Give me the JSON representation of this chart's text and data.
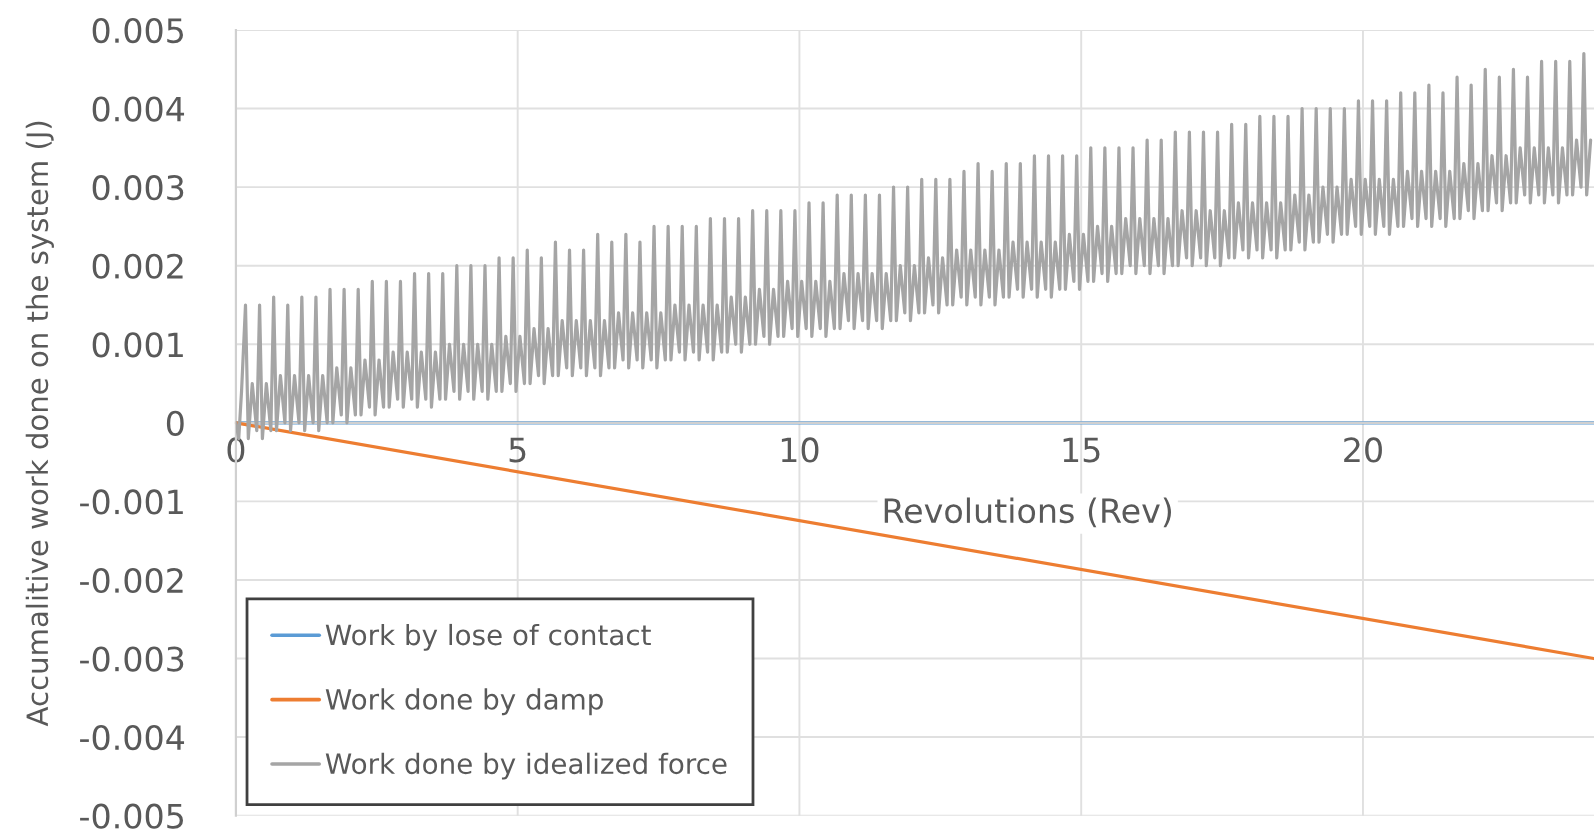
{
  "chart_data": {
    "type": "line",
    "xlabel": "Revolutions (Rev)",
    "ylabel": "Accumalitive work done on the system (J)",
    "xlim": [
      0,
      24.1
    ],
    "ylim": [
      -0.005,
      0.005
    ],
    "xticks": [
      0,
      5,
      10,
      15,
      20
    ],
    "yticks": [
      -0.005,
      -0.004,
      -0.003,
      -0.002,
      -0.001,
      0,
      0.001,
      0.002,
      0.003,
      0.004,
      0.005
    ],
    "grid": true,
    "legend": "bottom left",
    "series": [
      {
        "name": "Work by lose of contact",
        "color": "#5b9bd5",
        "x": [
          0,
          24.1
        ],
        "values": [
          0,
          0
        ]
      },
      {
        "name": "Work done by damp",
        "color": "#ed7d31",
        "x": [
          0,
          24.1
        ],
        "values": [
          0,
          -0.003
        ]
      },
      {
        "name": "Work done by idealized force",
        "color": "#a5a5a5",
        "x": [
          0,
          0.05,
          0.1,
          0.17,
          0.22,
          0.29,
          0.37,
          0.42,
          0.47,
          0.54,
          0.62,
          0.67,
          0.72,
          0.79,
          0.87,
          0.92,
          0.97,
          1.04,
          1.12,
          1.17,
          1.22,
          1.29,
          1.37,
          1.42,
          1.47,
          1.54,
          1.62,
          1.67,
          1.72,
          1.79,
          1.87,
          1.92,
          1.97,
          2.04,
          2.12,
          2.17,
          2.22,
          2.29,
          2.37,
          2.42,
          2.47,
          2.54,
          2.62,
          2.67,
          2.72,
          2.79,
          2.87,
          2.92,
          2.97,
          3.04,
          3.12,
          3.17,
          3.22,
          3.29,
          3.37,
          3.42,
          3.47,
          3.54,
          3.62,
          3.67,
          3.72,
          3.79,
          3.87,
          3.92,
          3.97,
          4.04,
          4.12,
          4.17,
          4.22,
          4.29,
          4.37,
          4.42,
          4.47,
          4.54,
          4.62,
          4.67,
          4.72,
          4.79,
          4.87,
          4.92,
          4.97,
          5.04,
          5.12,
          5.17,
          5.22,
          5.29,
          5.37,
          5.42,
          5.47,
          5.54,
          5.62,
          5.67,
          5.72,
          5.79,
          5.87,
          5.92,
          5.97,
          6.04,
          6.12,
          6.17,
          6.22,
          6.29,
          6.37,
          6.42,
          6.47,
          6.54,
          6.62,
          6.67,
          6.72,
          6.79,
          6.87,
          6.92,
          6.97,
          7.04,
          7.12,
          7.17,
          7.22,
          7.29,
          7.37,
          7.42,
          7.47,
          7.54,
          7.62,
          7.67,
          7.72,
          7.79,
          7.87,
          7.92,
          7.97,
          8.04,
          8.12,
          8.17,
          8.22,
          8.29,
          8.37,
          8.42,
          8.47,
          8.54,
          8.62,
          8.67,
          8.72,
          8.79,
          8.87,
          8.92,
          8.97,
          9.04,
          9.12,
          9.17,
          9.22,
          9.29,
          9.37,
          9.42,
          9.47,
          9.54,
          9.62,
          9.67,
          9.72,
          9.79,
          9.87,
          9.92,
          9.97,
          10.04,
          10.12,
          10.17,
          10.22,
          10.29,
          10.37,
          10.42,
          10.47,
          10.54,
          10.62,
          10.67,
          10.72,
          10.79,
          10.87,
          10.92,
          10.97,
          11.04,
          11.12,
          11.17,
          11.22,
          11.29,
          11.37,
          11.42,
          11.47,
          11.54,
          11.62,
          11.67,
          11.72,
          11.79,
          11.87,
          11.92,
          11.97,
          12.04,
          12.12,
          12.17,
          12.22,
          12.29,
          12.37,
          12.42,
          12.47,
          12.54,
          12.62,
          12.67,
          12.72,
          12.79,
          12.87,
          12.92,
          12.97,
          13.04,
          13.12,
          13.17,
          13.22,
          13.29,
          13.37,
          13.42,
          13.47,
          13.54,
          13.62,
          13.67,
          13.72,
          13.79,
          13.87,
          13.92,
          13.97,
          14.04,
          14.12,
          14.17,
          14.22,
          14.29,
          14.37,
          14.42,
          14.47,
          14.54,
          14.62,
          14.67,
          14.72,
          14.79,
          14.87,
          14.92,
          14.97,
          15.04,
          15.12,
          15.17,
          15.22,
          15.29,
          15.37,
          15.42,
          15.47,
          15.54,
          15.62,
          15.67,
          15.72,
          15.79,
          15.87,
          15.92,
          15.97,
          16.04,
          16.12,
          16.17,
          16.22,
          16.29,
          16.37,
          16.42,
          16.47,
          16.54,
          16.62,
          16.67,
          16.72,
          16.79,
          16.87,
          16.92,
          16.97,
          17.04,
          17.12,
          17.17,
          17.22,
          17.29,
          17.37,
          17.42,
          17.47,
          17.54,
          17.62,
          17.67,
          17.72,
          17.79,
          17.87,
          17.92,
          17.97,
          18.04,
          18.12,
          18.17,
          18.22,
          18.29,
          18.37,
          18.42,
          18.47,
          18.54,
          18.62,
          18.67,
          18.72,
          18.79,
          18.87,
          18.92,
          18.97,
          19.04,
          19.12,
          19.17,
          19.22,
          19.29,
          19.37,
          19.42,
          19.47,
          19.54,
          19.62,
          19.67,
          19.72,
          19.79,
          19.87,
          19.92,
          19.97,
          20.04,
          20.12,
          20.17,
          20.22,
          20.29,
          20.37,
          20.42,
          20.47,
          20.54,
          20.62,
          20.67,
          20.72,
          20.79,
          20.87,
          20.92,
          20.97,
          21.04,
          21.12,
          21.17,
          21.22,
          21.29,
          21.37,
          21.42,
          21.47,
          21.54,
          21.62,
          21.67,
          21.72,
          21.79,
          21.87,
          21.92,
          21.97,
          22.04,
          22.12,
          22.17,
          22.22,
          22.29,
          22.37,
          22.42,
          22.47,
          22.54,
          22.62,
          22.67,
          22.72,
          22.79,
          22.87,
          22.92,
          22.97,
          23.04,
          23.12,
          23.17,
          23.22,
          23.29,
          23.37,
          23.42,
          23.47,
          23.54,
          23.62,
          23.67,
          23.72,
          23.79,
          23.87,
          23.92,
          23.97,
          24.04
        ],
        "values": [
          0,
          -0.0002,
          0.0004,
          0.0015,
          -0.0002,
          0.0005,
          -0.0001,
          0.0015,
          -0.0002,
          0.0005,
          -0.0001,
          0.0016,
          -0.0001,
          0.0006,
          0,
          0.0015,
          -0.0001,
          0.0006,
          0,
          0.0016,
          -0.0001,
          0.0006,
          0,
          0.0016,
          -0.0001,
          0.0006,
          0,
          0.0017,
          0,
          0.0007,
          0.0001,
          0.0017,
          0,
          0.0007,
          0.0001,
          0.0017,
          0.0001,
          0.0008,
          0.0002,
          0.0018,
          0.0001,
          0.0008,
          0.0002,
          0.0018,
          0.0002,
          0.0009,
          0.0003,
          0.0018,
          0.0002,
          0.0009,
          0.0003,
          0.0019,
          0.0002,
          0.0009,
          0.0003,
          0.0019,
          0.0002,
          0.0009,
          0.0003,
          0.0019,
          0.0003,
          0.001,
          0.0004,
          0.002,
          0.0003,
          0.001,
          0.0004,
          0.002,
          0.0003,
          0.001,
          0.0004,
          0.002,
          0.0003,
          0.001,
          0.0004,
          0.0021,
          0.0004,
          0.0011,
          0.0005,
          0.0021,
          0.0004,
          0.0011,
          0.0005,
          0.0022,
          0.0005,
          0.0012,
          0.0006,
          0.0021,
          0.0005,
          0.0012,
          0.0006,
          0.0023,
          0.0006,
          0.0013,
          0.0007,
          0.0022,
          0.0006,
          0.0013,
          0.0007,
          0.0022,
          0.0006,
          0.0013,
          0.0007,
          0.0024,
          0.0006,
          0.0013,
          0.0007,
          0.0023,
          0.0007,
          0.0014,
          0.0008,
          0.0024,
          0.0007,
          0.0014,
          0.0008,
          0.0023,
          0.0007,
          0.0014,
          0.0008,
          0.0025,
          0.0007,
          0.0014,
          0.0008,
          0.0025,
          0.0008,
          0.0015,
          0.0009,
          0.0025,
          0.0008,
          0.0015,
          0.0009,
          0.0025,
          0.0008,
          0.0015,
          0.0009,
          0.0026,
          0.0008,
          0.0015,
          0.0009,
          0.0026,
          0.0009,
          0.0016,
          0.001,
          0.0026,
          0.0009,
          0.0016,
          0.001,
          0.0027,
          0.001,
          0.0017,
          0.0011,
          0.0027,
          0.001,
          0.0017,
          0.0011,
          0.0027,
          0.0011,
          0.0018,
          0.0012,
          0.0027,
          0.0011,
          0.0018,
          0.0012,
          0.0028,
          0.0011,
          0.0018,
          0.0012,
          0.0028,
          0.0011,
          0.0018,
          0.0012,
          0.0029,
          0.0012,
          0.0019,
          0.0013,
          0.0029,
          0.0012,
          0.0019,
          0.0013,
          0.0029,
          0.0012,
          0.0019,
          0.0013,
          0.0029,
          0.0012,
          0.0019,
          0.0013,
          0.003,
          0.0013,
          0.002,
          0.0014,
          0.003,
          0.0013,
          0.002,
          0.0014,
          0.0031,
          0.0014,
          0.0021,
          0.0015,
          0.0031,
          0.0014,
          0.0021,
          0.0015,
          0.0031,
          0.0015,
          0.0022,
          0.0016,
          0.0032,
          0.0015,
          0.0022,
          0.0016,
          0.0033,
          0.0015,
          0.0022,
          0.0016,
          0.0032,
          0.0015,
          0.0022,
          0.0016,
          0.0033,
          0.0016,
          0.0023,
          0.0017,
          0.0033,
          0.0016,
          0.0023,
          0.0017,
          0.0034,
          0.0016,
          0.0023,
          0.0017,
          0.0034,
          0.0016,
          0.0023,
          0.0017,
          0.0034,
          0.0017,
          0.0024,
          0.0018,
          0.0034,
          0.0017,
          0.0024,
          0.0018,
          0.0035,
          0.0018,
          0.0025,
          0.0019,
          0.0035,
          0.0018,
          0.0025,
          0.0019,
          0.0035,
          0.0019,
          0.0026,
          0.002,
          0.0035,
          0.0019,
          0.0026,
          0.002,
          0.0036,
          0.0019,
          0.0026,
          0.002,
          0.0036,
          0.0019,
          0.0026,
          0.002,
          0.0037,
          0.002,
          0.0027,
          0.0021,
          0.0037,
          0.002,
          0.0027,
          0.0021,
          0.0037,
          0.002,
          0.0027,
          0.0021,
          0.0037,
          0.002,
          0.0027,
          0.0021,
          0.0038,
          0.0021,
          0.0028,
          0.0022,
          0.0038,
          0.0021,
          0.0028,
          0.0022,
          0.0039,
          0.0021,
          0.0028,
          0.0022,
          0.0039,
          0.0021,
          0.0028,
          0.0022,
          0.0039,
          0.0022,
          0.0029,
          0.0023,
          0.004,
          0.0022,
          0.0029,
          0.0023,
          0.004,
          0.0023,
          0.003,
          0.0024,
          0.004,
          0.0023,
          0.003,
          0.0024,
          0.004,
          0.0024,
          0.0031,
          0.0025,
          0.0041,
          0.0024,
          0.0031,
          0.0025,
          0.0041,
          0.0024,
          0.0031,
          0.0025,
          0.0041,
          0.0024,
          0.0031,
          0.0025,
          0.0042,
          0.0025,
          0.0032,
          0.0026,
          0.0042,
          0.0025,
          0.0032,
          0.0026,
          0.0043,
          0.0025,
          0.0032,
          0.0026,
          0.0042,
          0.0025,
          0.0032,
          0.0026,
          0.0044,
          0.0026,
          0.0033,
          0.0027,
          0.0043,
          0.0026,
          0.0033,
          0.0027,
          0.0045,
          0.0027,
          0.0034,
          0.0028,
          0.0044,
          0.0027,
          0.0034,
          0.0028,
          0.0045,
          0.0028,
          0.0035,
          0.0029,
          0.0044,
          0.0028,
          0.0035,
          0.0029,
          0.0046,
          0.0028,
          0.0035,
          0.0029,
          0.0046,
          0.0028,
          0.0035,
          0.0029,
          0.0046,
          0.0029,
          0.0036,
          0.003,
          0.0047,
          0.0029,
          0.0036
        ]
      }
    ]
  }
}
